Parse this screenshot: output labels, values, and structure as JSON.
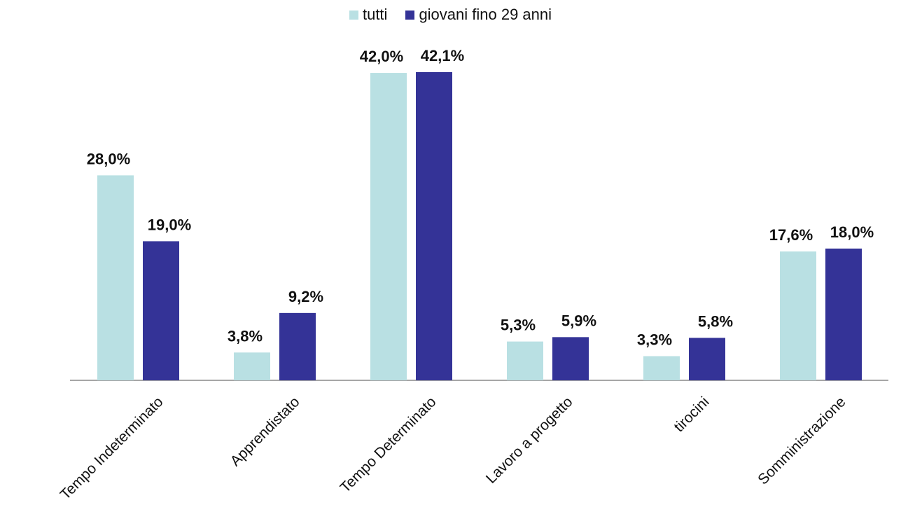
{
  "chart_data": {
    "type": "bar",
    "categories": [
      "Tempo Indeterminato",
      "Apprendistato",
      "Tempo Determinato",
      "Lavoro a progetto",
      "tirocini",
      "Somministrazione"
    ],
    "series": [
      {
        "name": "tutti",
        "color": "#b9e0e3",
        "values": [
          28.0,
          3.8,
          42.0,
          5.3,
          3.3,
          17.6
        ],
        "labels": [
          "28,0%",
          "3,8%",
          "42,0%",
          "5,3%",
          "3,3%",
          "17,6%"
        ]
      },
      {
        "name": "giovani fino 29 anni",
        "color": "#343397",
        "values": [
          19.0,
          9.2,
          42.1,
          5.9,
          5.8,
          18.0
        ],
        "labels": [
          "19,0%",
          "9,2%",
          "42,1%",
          "5,9%",
          "5,8%",
          "18,0%"
        ]
      }
    ],
    "ylim": [
      0,
      42.1
    ],
    "grid": false,
    "legend_position": "top-center"
  }
}
